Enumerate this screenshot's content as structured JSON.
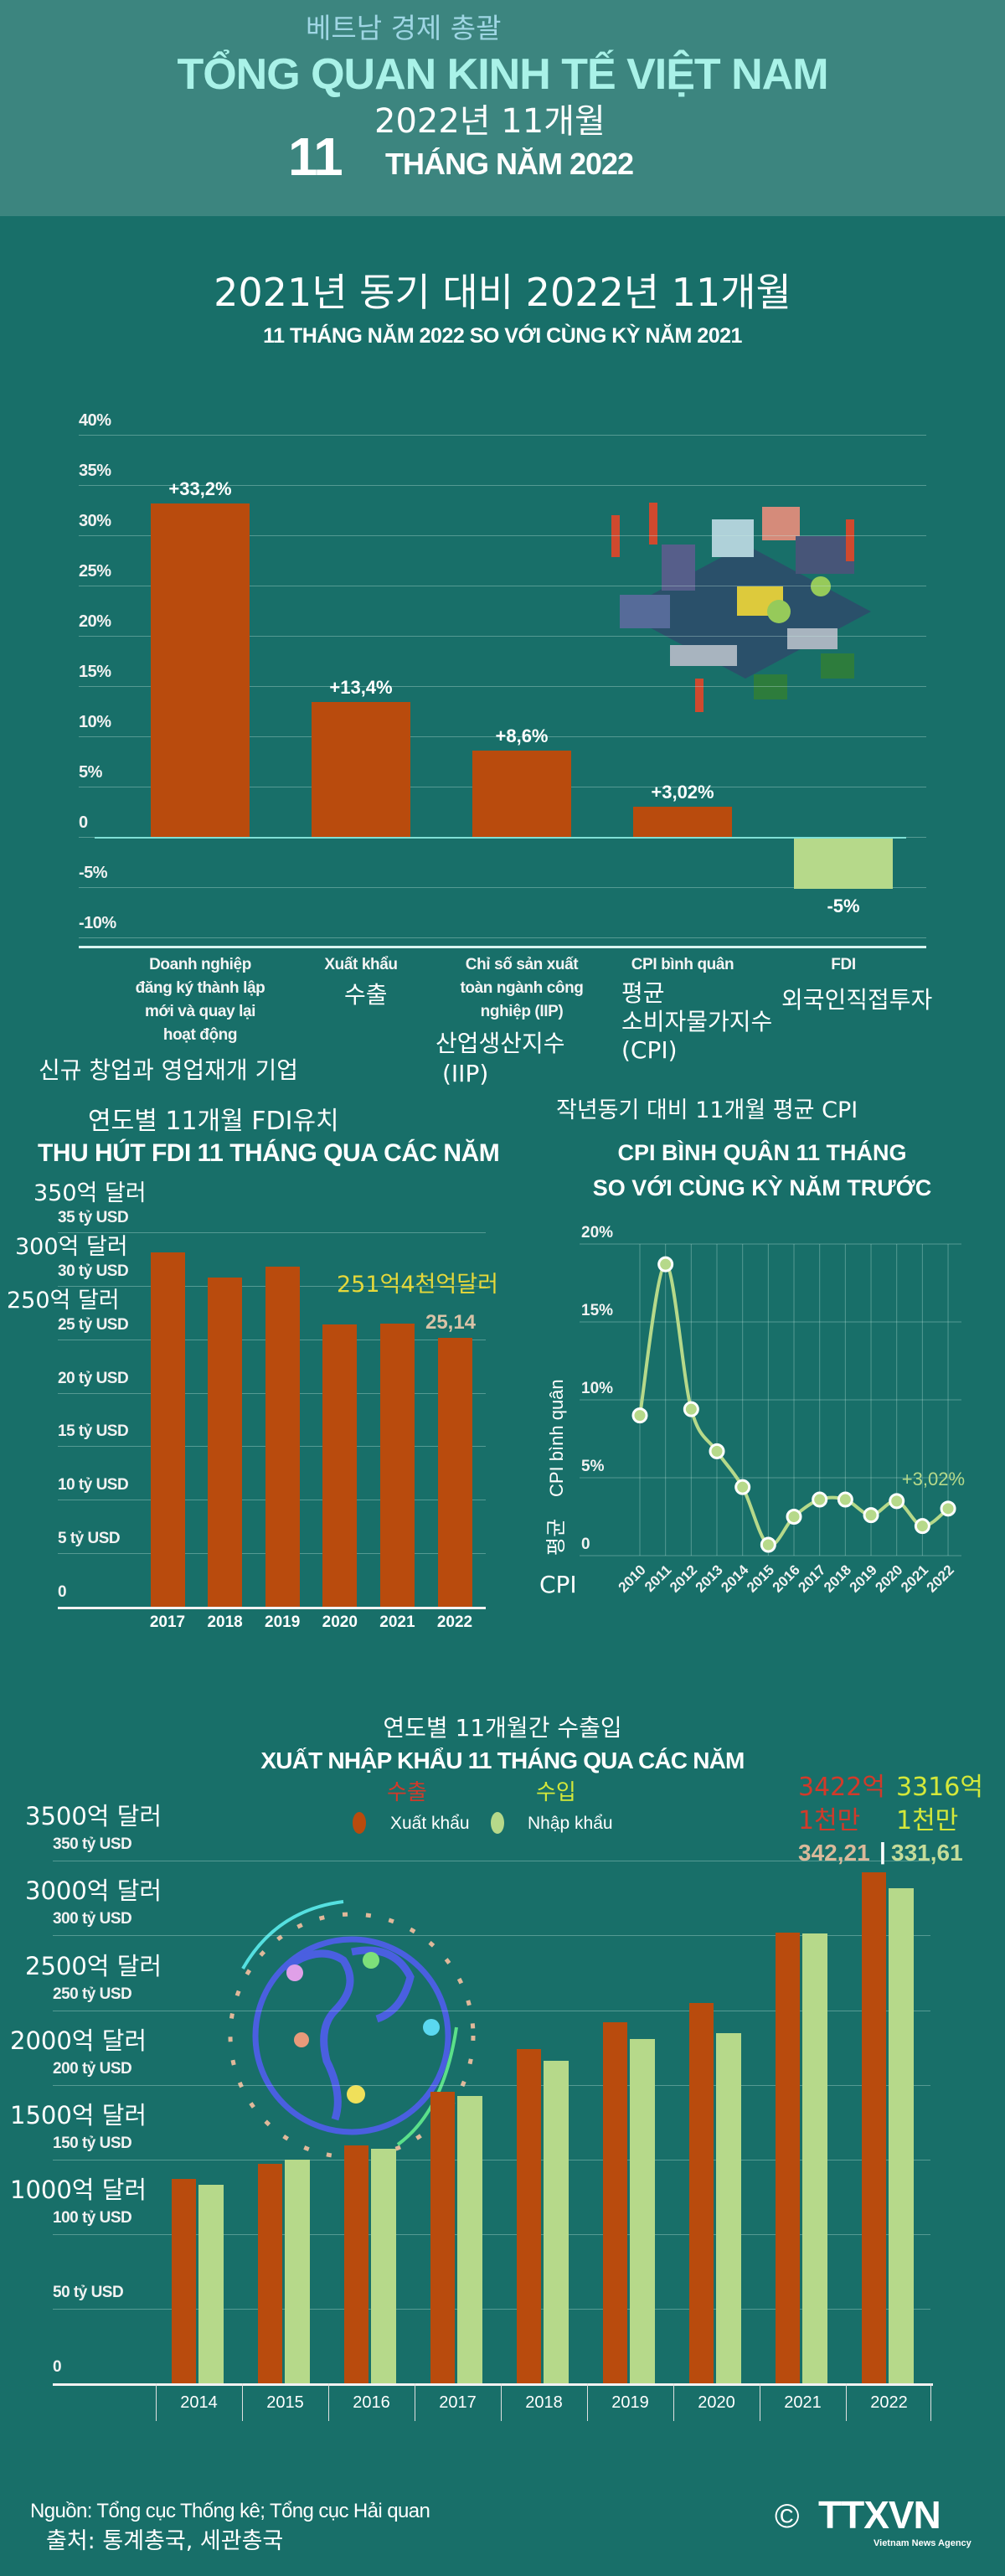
{
  "colors": {
    "header_band": "#3c857f",
    "background": "#186f69",
    "bar_primary": "#b94b0d",
    "bar_secondary": "#b6d98a",
    "title_cyan": "#a9f2e8",
    "korean_accent_red": "#d23a2a",
    "korean_accent_yellow": "#d4e83a"
  },
  "header": {
    "korean_title": "베트남 경제 총괄",
    "title": "TỔNG QUAN KINH TẾ VIỆT NAM",
    "korean_period": "2022년 11개월",
    "period_number": "11",
    "period_text": "THÁNG NĂM 2022"
  },
  "growth_section": {
    "korean_title": "2021년 동기 대비 2022년 11개월",
    "title": "11 THÁNG NĂM 2022 SO VỚI CÙNG KỲ NĂM 2021",
    "korean_category_labels": [
      "신규 창업과 영업재개 기업",
      "수출",
      "산업생산지수",
      "(IIP)",
      "평균",
      "소비자물가지수",
      "(CPI)",
      "외국인직접투자"
    ],
    "illustration": "factory-illustration"
  },
  "fdi_section": {
    "korean_title": "연도별 11개월 FDI유치",
    "title": "THU HÚT FDI 11 THÁNG QUA CÁC NĂM",
    "korean_ytick_labels": [
      "350억 달러",
      "300억 달러",
      "250억 달러"
    ],
    "korean_annotation": "251억4천억달러"
  },
  "cpi_section": {
    "korean_title": "작년동기 대비 11개월 평균 CPI",
    "title_line1": "CPI BÌNH QUÂN 11 THÁNG",
    "title_line2": "SO VỚI CÙNG KỲ NĂM TRƯỚC",
    "korean_ylabel_rotated": "평균",
    "korean_ylabel_cpi": "CPI"
  },
  "trade_section": {
    "korean_title": "연도별 11개월간 수출입",
    "title": "XUẤT NHẬP KHẨU 11 THÁNG QUA CÁC NĂM",
    "korean_legend_export": "수출",
    "korean_legend_import": "수입",
    "korean_ytick_labels": [
      "3500억 달러",
      "3000억 달러",
      "2500억 달러",
      "2000억 달러",
      "1500억 달러",
      "1000억 달러"
    ],
    "korean_export_value_line1": "3422억",
    "korean_export_value_line2": "1천만",
    "korean_import_value_line1": "3316억",
    "korean_import_value_line2": "1천만",
    "export_value_label": "342,21",
    "separator": "|",
    "import_value_label": "331,61",
    "illustration": "globe-illustration"
  },
  "footer": {
    "source": "Nguồn: Tổng cục Thống kê; Tổng cục Hải quan",
    "korean_source": "출처: 통계총국, 세관총국",
    "logo_copyright": "©",
    "logo_text": "TTXVN",
    "logo_subtitle": "Vietnam News Agency"
  },
  "chart_data": [
    {
      "type": "bar",
      "categories": [
        "Doanh nghiệp đăng ký thành lập mới và quay lại hoạt động",
        "Xuất khẩu",
        "Chỉ số sản xuất toàn ngành công nghiệp (IIP)",
        "CPI bình quân",
        "FDI"
      ],
      "values": [
        33.2,
        13.4,
        8.6,
        3.02,
        -5
      ],
      "data_labels": [
        "+33,2%",
        "+13,4%",
        "+8,6%",
        "+3,02%",
        "-5%"
      ],
      "bar_colors": [
        "#b94b0d",
        "#b94b0d",
        "#b94b0d",
        "#b94b0d",
        "#b6d98a"
      ],
      "ytick_labels": [
        "40%",
        "35%",
        "30%",
        "25%",
        "20%",
        "15%",
        "10%",
        "5%",
        "0",
        "-5%",
        "-10%"
      ],
      "ylim": [
        -10,
        40
      ],
      "grid": true
    },
    {
      "type": "bar",
      "categories": [
        "2017",
        "2018",
        "2019",
        "2020",
        "2021",
        "2022"
      ],
      "values": [
        33.1,
        30.8,
        31.8,
        26.4,
        26.5,
        25.14
      ],
      "data_labels": [
        "",
        "",
        "",
        "",
        "",
        "25,14"
      ],
      "ytick_labels": [
        "35 tỷ USD",
        "30 tỷ USD",
        "25 tỷ USD",
        "20 tỷ USD",
        "15 tỷ USD",
        "10 tỷ USD",
        "5 tỷ USD",
        "0"
      ],
      "ylim": [
        0,
        35
      ],
      "grid": true
    },
    {
      "type": "line",
      "x": [
        "2010",
        "2011",
        "2012",
        "2013",
        "2014",
        "2015",
        "2016",
        "2017",
        "2018",
        "2019",
        "2020",
        "2021",
        "2022"
      ],
      "values": [
        9.0,
        18.7,
        9.4,
        6.7,
        4.4,
        0.7,
        2.5,
        3.6,
        3.6,
        2.6,
        3.5,
        1.9,
        3.02
      ],
      "data_labels": [
        "",
        "",
        "",
        "",
        "",
        "",
        "",
        "",
        "",
        "",
        "",
        "",
        "+3,02%"
      ],
      "ylabel": "CPI bình quân",
      "ytick_labels": [
        "20%",
        "15%",
        "10%",
        "5%",
        "0"
      ],
      "ylim": [
        0,
        20
      ],
      "grid": true
    },
    {
      "type": "bar",
      "categories": [
        "2014",
        "2015",
        "2016",
        "2017",
        "2018",
        "2019",
        "2020",
        "2021",
        "2022"
      ],
      "series": [
        {
          "name": "Xuất khẩu",
          "color": "#b94b0d",
          "values": [
            136.7,
            147.3,
            159.5,
            195.4,
            224.0,
            241.7,
            254.8,
            302.0,
            342.21
          ]
        },
        {
          "name": "Nhập khẩu",
          "color": "#b6d98a",
          "values": [
            133.0,
            150.0,
            157.0,
            192.7,
            216.0,
            230.8,
            234.6,
            301.3,
            331.61
          ]
        }
      ],
      "ytick_labels": [
        "350 tỷ USD",
        "300 tỷ USD",
        "250 tỷ USD",
        "200 tỷ USD",
        "150 tỷ USD",
        "100 tỷ USD",
        "50 tỷ USD",
        "0"
      ],
      "ylim": [
        0,
        350
      ],
      "legend": "top-center",
      "grid": true
    }
  ]
}
